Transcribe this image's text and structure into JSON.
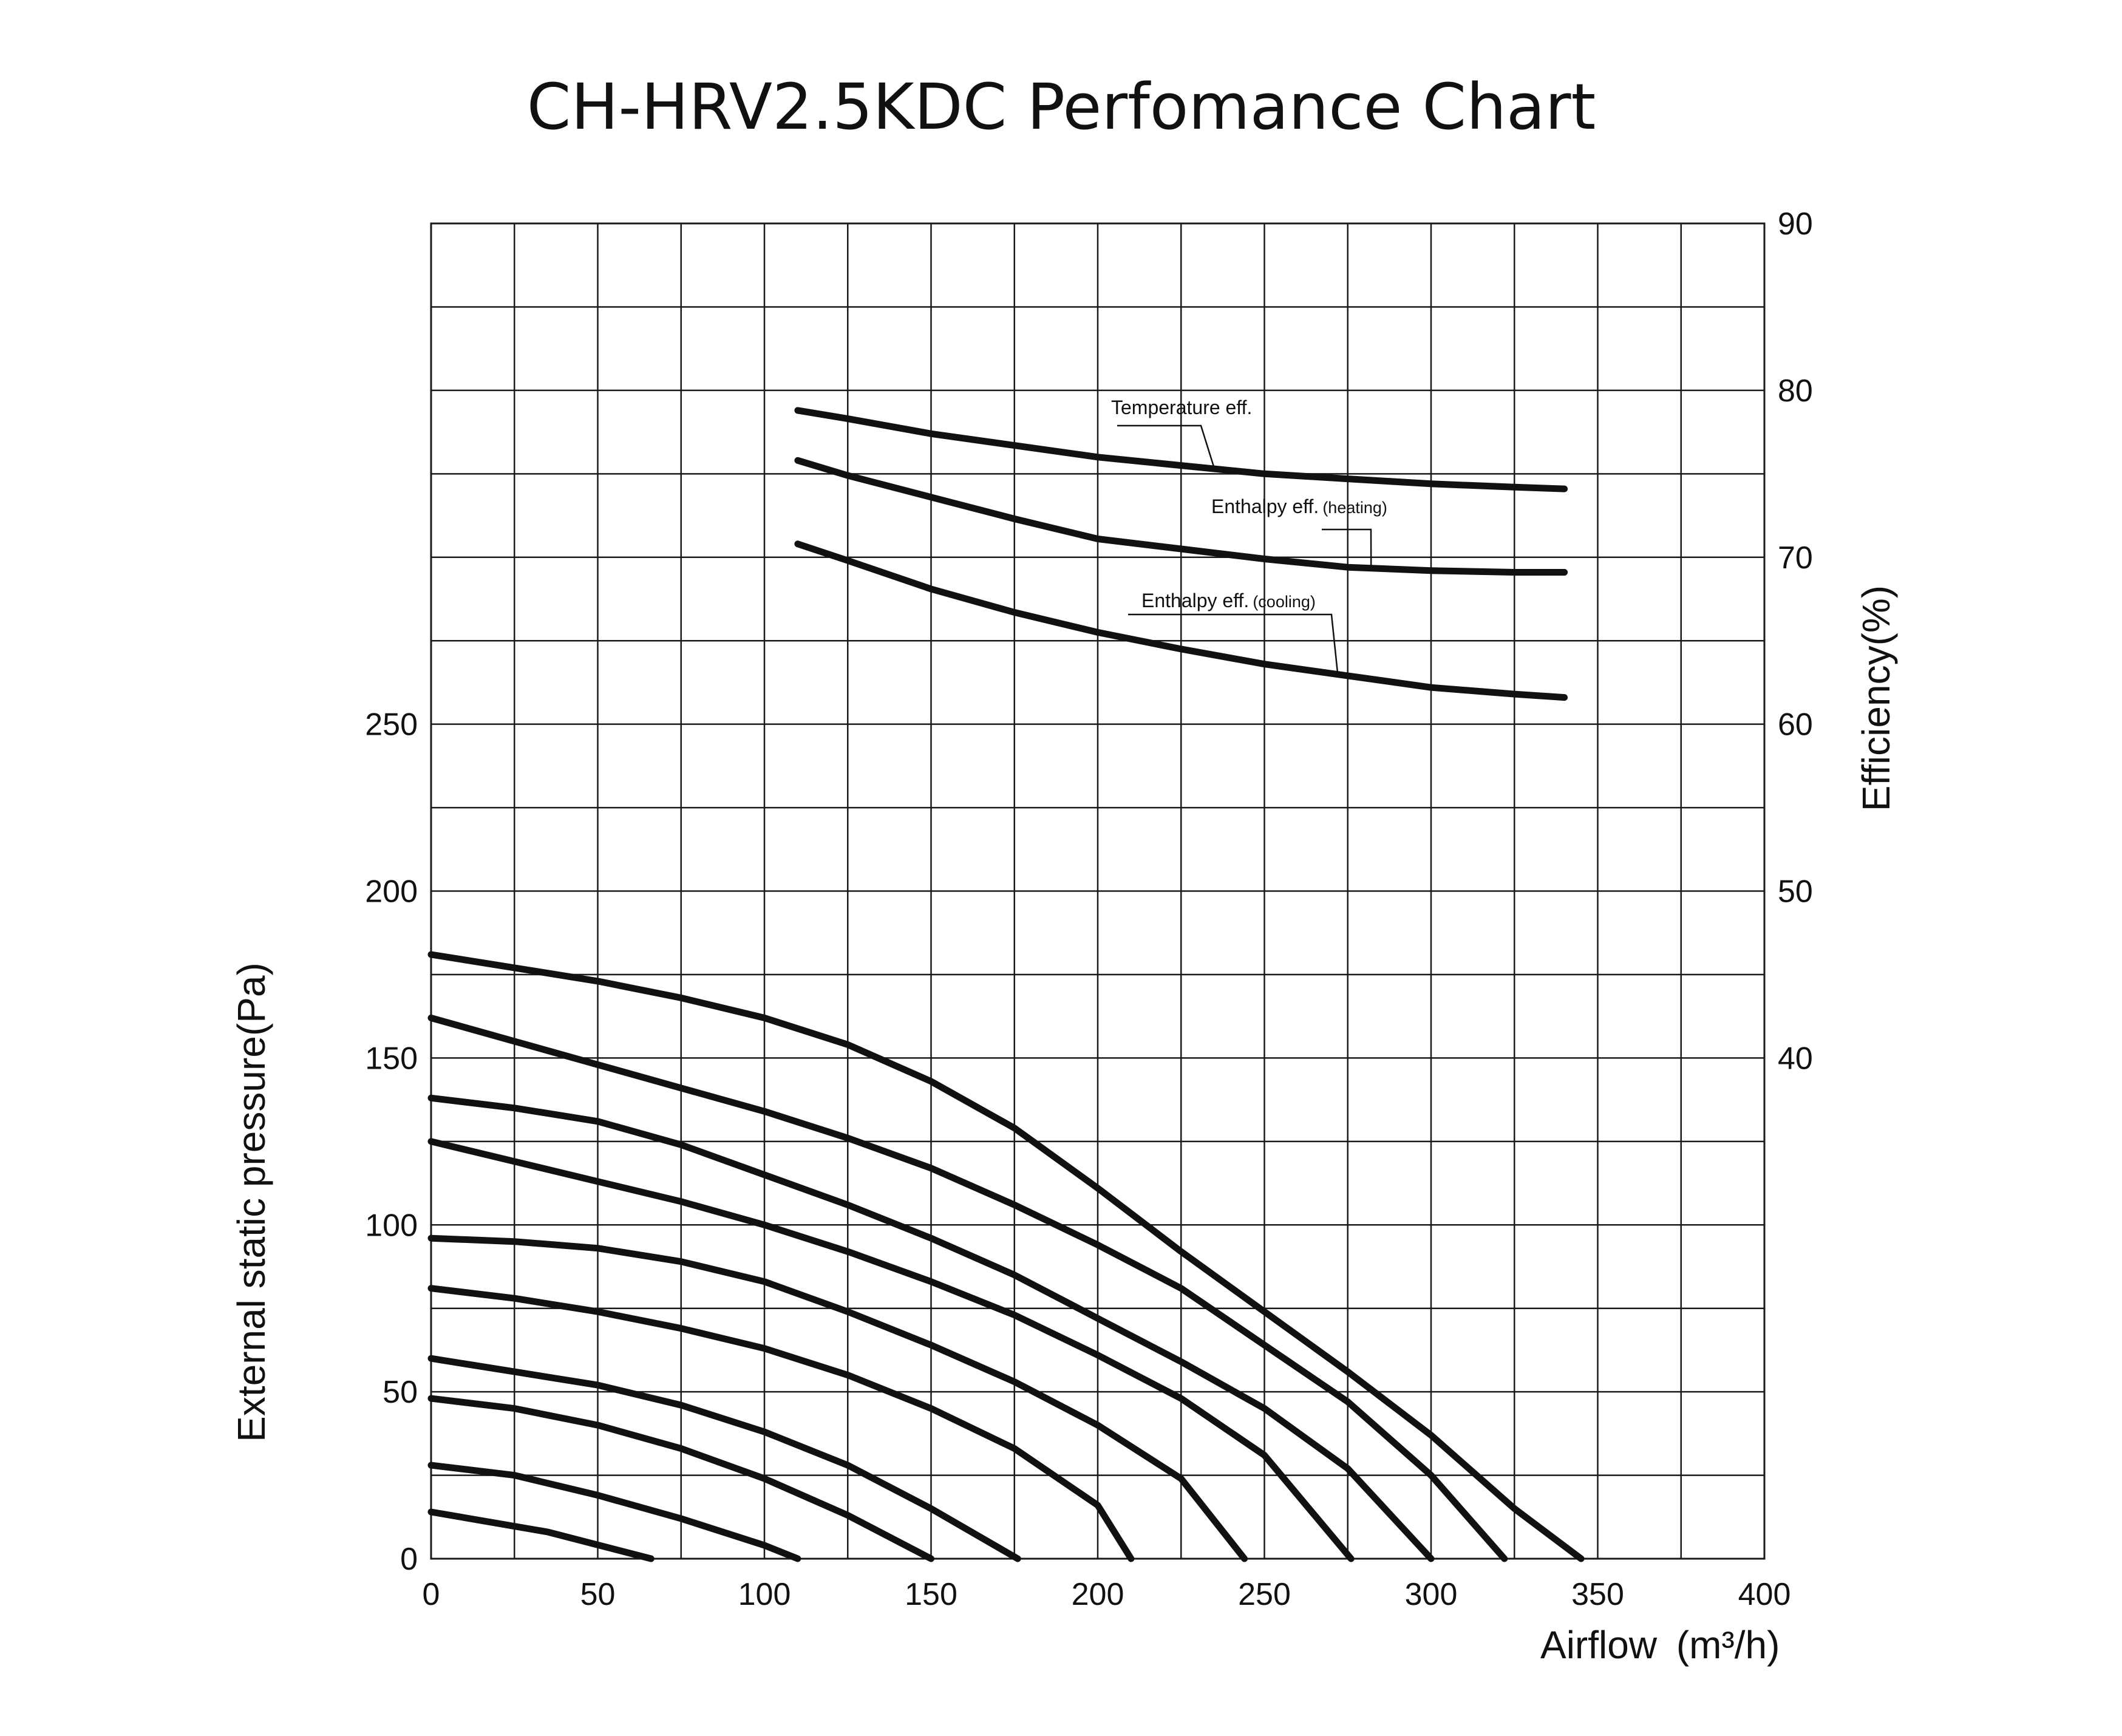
{
  "chart_data": {
    "type": "line",
    "title": "CH-HRV2.5KDC Perfomance Chart",
    "xlabel": "Airflow",
    "xlabel_unit": "(m³/h)",
    "ylabel": "External static pressure(Pa)",
    "y2label": "Efficiency(%)",
    "xlim": [
      0,
      400
    ],
    "ylim": [
      0,
      400
    ],
    "y2lim": [
      10,
      90
    ],
    "grid": true,
    "x_ticks": [
      "0",
      "50",
      "100",
      "150",
      "200",
      "250",
      "300",
      "350",
      "400"
    ],
    "y_ticks": [
      "0",
      "50",
      "100",
      "150",
      "200",
      "250"
    ],
    "y2_ticks": [
      "40",
      "50",
      "60",
      "70",
      "80",
      "90"
    ],
    "pressure_curves": [
      {
        "x": [
          0,
          35,
          66
        ],
        "y": [
          14,
          8,
          0
        ]
      },
      {
        "x": [
          0,
          25,
          50,
          75,
          100,
          110
        ],
        "y": [
          28,
          25,
          19,
          12,
          4,
          0
        ]
      },
      {
        "x": [
          0,
          25,
          50,
          75,
          100,
          125,
          150
        ],
        "y": [
          48,
          45,
          40,
          33,
          24,
          13,
          0
        ]
      },
      {
        "x": [
          0,
          25,
          50,
          75,
          100,
          125,
          150,
          176
        ],
        "y": [
          60,
          56,
          52,
          46,
          38,
          28,
          15,
          0
        ]
      },
      {
        "x": [
          0,
          25,
          50,
          75,
          100,
          125,
          150,
          175,
          200,
          210
        ],
        "y": [
          81,
          78,
          74,
          69,
          63,
          55,
          45,
          33,
          16,
          0
        ]
      },
      {
        "x": [
          0,
          25,
          50,
          75,
          100,
          125,
          150,
          175,
          200,
          225,
          244
        ],
        "y": [
          96,
          95,
          93,
          89,
          83,
          74,
          64,
          53,
          40,
          24,
          0
        ]
      },
      {
        "x": [
          0,
          25,
          50,
          75,
          100,
          125,
          150,
          175,
          200,
          225,
          250,
          276
        ],
        "y": [
          125,
          119,
          113,
          107,
          100,
          92,
          83,
          73,
          61,
          48,
          31,
          0
        ]
      },
      {
        "x": [
          0,
          25,
          50,
          75,
          100,
          125,
          150,
          175,
          200,
          225,
          250,
          275,
          300
        ],
        "y": [
          138,
          135,
          131,
          124,
          115,
          106,
          96,
          85,
          72,
          59,
          45,
          27,
          0
        ]
      },
      {
        "x": [
          0,
          25,
          50,
          75,
          100,
          125,
          150,
          175,
          200,
          225,
          250,
          275,
          300,
          322
        ],
        "y": [
          162,
          155,
          148,
          141,
          134,
          126,
          117,
          106,
          94,
          81,
          64,
          47,
          25,
          0
        ]
      },
      {
        "x": [
          0,
          25,
          50,
          75,
          100,
          125,
          150,
          175,
          200,
          225,
          250,
          275,
          300,
          325,
          345
        ],
        "y": [
          181,
          177,
          173,
          168,
          162,
          154,
          143,
          129,
          111,
          92,
          74,
          56,
          37,
          15,
          0
        ]
      }
    ],
    "efficiency_series": [
      {
        "name": "Temperature eff.",
        "x": [
          110,
          125,
          150,
          175,
          200,
          225,
          250,
          275,
          300,
          325,
          340
        ],
        "y": [
          78.8,
          78.3,
          77.4,
          76.7,
          76.0,
          75.5,
          75.0,
          74.7,
          74.4,
          74.2,
          74.1
        ]
      },
      {
        "name": "Enthalpy eff.(heating)",
        "x": [
          110,
          125,
          150,
          175,
          200,
          225,
          250,
          275,
          300,
          325,
          340
        ],
        "y": [
          75.8,
          74.9,
          73.6,
          72.3,
          71.1,
          70.5,
          69.9,
          69.4,
          69.2,
          69.1,
          69.1
        ]
      },
      {
        "name": "Enthalpy eff.(cooling)",
        "x": [
          110,
          125,
          150,
          175,
          200,
          225,
          250,
          275,
          300,
          325,
          340
        ],
        "y": [
          70.8,
          69.8,
          68.1,
          66.7,
          65.5,
          64.5,
          63.6,
          62.9,
          62.2,
          61.8,
          61.6
        ]
      }
    ],
    "annotations": [
      {
        "series": "Temperature eff.",
        "label": "Temperature eff.",
        "at_x": 235
      },
      {
        "series": "Enthalpy eff.(heating)",
        "label": "Enthalpy eff.",
        "label_suffix": "(heating)",
        "at_x": 282
      },
      {
        "series": "Enthalpy eff.(cooling)",
        "label": "Enthalpy eff.",
        "label_suffix": "(cooling)",
        "at_x": 272
      }
    ]
  }
}
